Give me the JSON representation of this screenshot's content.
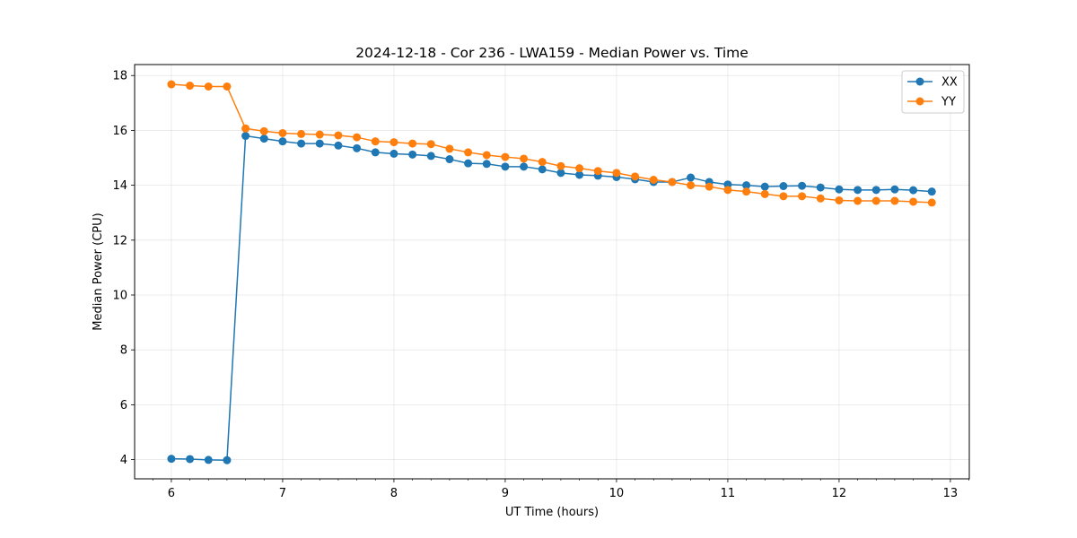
{
  "chart_data": {
    "type": "line",
    "title": "2024-12-18 - Cor 236 - LWA159 - Median Power vs. Time",
    "xlabel": "UT Time (hours)",
    "ylabel": "Median Power (CPU)",
    "xlim": [
      5.67,
      13.17
    ],
    "ylim": [
      3.3,
      18.4
    ],
    "xticks": [
      6,
      7,
      8,
      9,
      10,
      11,
      12,
      13
    ],
    "yticks": [
      4,
      6,
      8,
      10,
      12,
      14,
      16,
      18
    ],
    "grid": true,
    "legend_position": "top-right",
    "x": [
      6.0,
      6.1667,
      6.3333,
      6.5,
      6.6667,
      6.8333,
      7.0,
      7.1667,
      7.3333,
      7.5,
      7.6667,
      7.8333,
      8.0,
      8.1667,
      8.3333,
      8.5,
      8.6667,
      8.8333,
      9.0,
      9.1667,
      9.3333,
      9.5,
      9.6667,
      9.8333,
      10.0,
      10.1667,
      10.3333,
      10.5,
      10.6667,
      10.8333,
      11.0,
      11.1667,
      11.3333,
      11.5,
      11.6667,
      11.8333,
      12.0,
      12.1667,
      12.3333,
      12.5,
      12.6667,
      12.8333
    ],
    "series": [
      {
        "name": "XX",
        "color": "#1f77b4",
        "values": [
          4.03,
          4.02,
          3.99,
          3.98,
          15.8,
          15.7,
          15.6,
          15.52,
          15.52,
          15.45,
          15.35,
          15.2,
          15.15,
          15.12,
          15.07,
          14.95,
          14.8,
          14.78,
          14.68,
          14.68,
          14.58,
          14.45,
          14.38,
          14.35,
          14.3,
          14.22,
          14.12,
          14.12,
          14.28,
          14.12,
          14.03,
          14.0,
          13.95,
          13.97,
          13.98,
          13.92,
          13.85,
          13.83,
          13.83,
          13.85,
          13.82,
          13.77
        ]
      },
      {
        "name": "YY",
        "color": "#ff7f0e",
        "values": [
          17.68,
          17.63,
          17.6,
          17.6,
          16.07,
          15.97,
          15.9,
          15.87,
          15.85,
          15.82,
          15.75,
          15.6,
          15.57,
          15.52,
          15.5,
          15.33,
          15.2,
          15.1,
          15.03,
          14.97,
          14.85,
          14.7,
          14.62,
          14.52,
          14.45,
          14.32,
          14.2,
          14.12,
          14.0,
          13.95,
          13.83,
          13.77,
          13.68,
          13.6,
          13.6,
          13.52,
          13.45,
          13.43,
          13.43,
          13.43,
          13.4,
          13.37
        ]
      }
    ]
  }
}
